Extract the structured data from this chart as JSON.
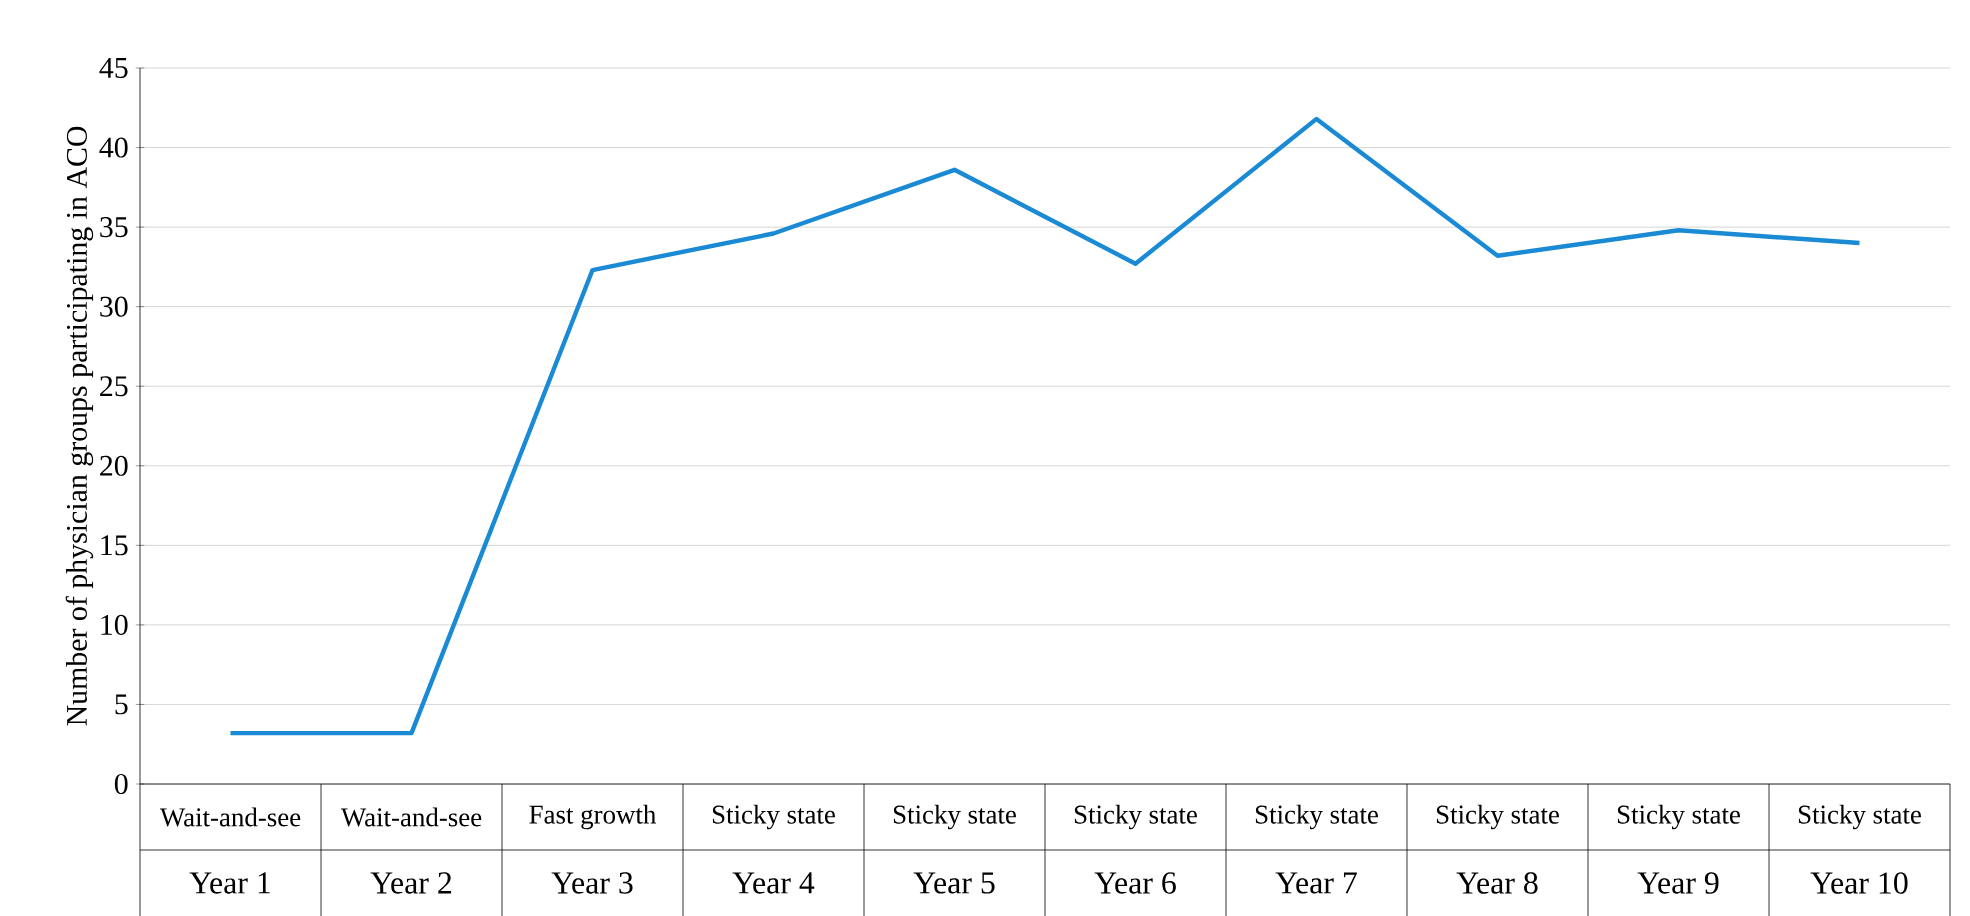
{
  "chart_data": {
    "type": "line",
    "ylabel": "Number of physician groups participating in ACO",
    "categories": [
      "Year 1",
      "Year 2",
      "Year 3",
      "Year 4",
      "Year 5",
      "Year 6",
      "Year 7",
      "Year 8",
      "Year 9",
      "Year 10"
    ],
    "annotations": [
      "Wait-and-see",
      "Wait-and-see",
      "Fast growth",
      "Sticky state",
      "Sticky state",
      "Sticky state",
      "Sticky state",
      "Sticky state",
      "Sticky state",
      "Sticky state"
    ],
    "series": [
      {
        "color": "#1a8ad4",
        "values": [
          3.2,
          3.2,
          32.3,
          34.6,
          38.6,
          32.7,
          41.8,
          33.2,
          34.8,
          34.0
        ]
      }
    ],
    "ylim": [
      0,
      45
    ],
    "yticks": [
      0,
      5,
      10,
      15,
      20,
      25,
      30,
      35,
      40,
      45
    ],
    "grid": "y",
    "marker": "none",
    "line_style": "solid"
  }
}
